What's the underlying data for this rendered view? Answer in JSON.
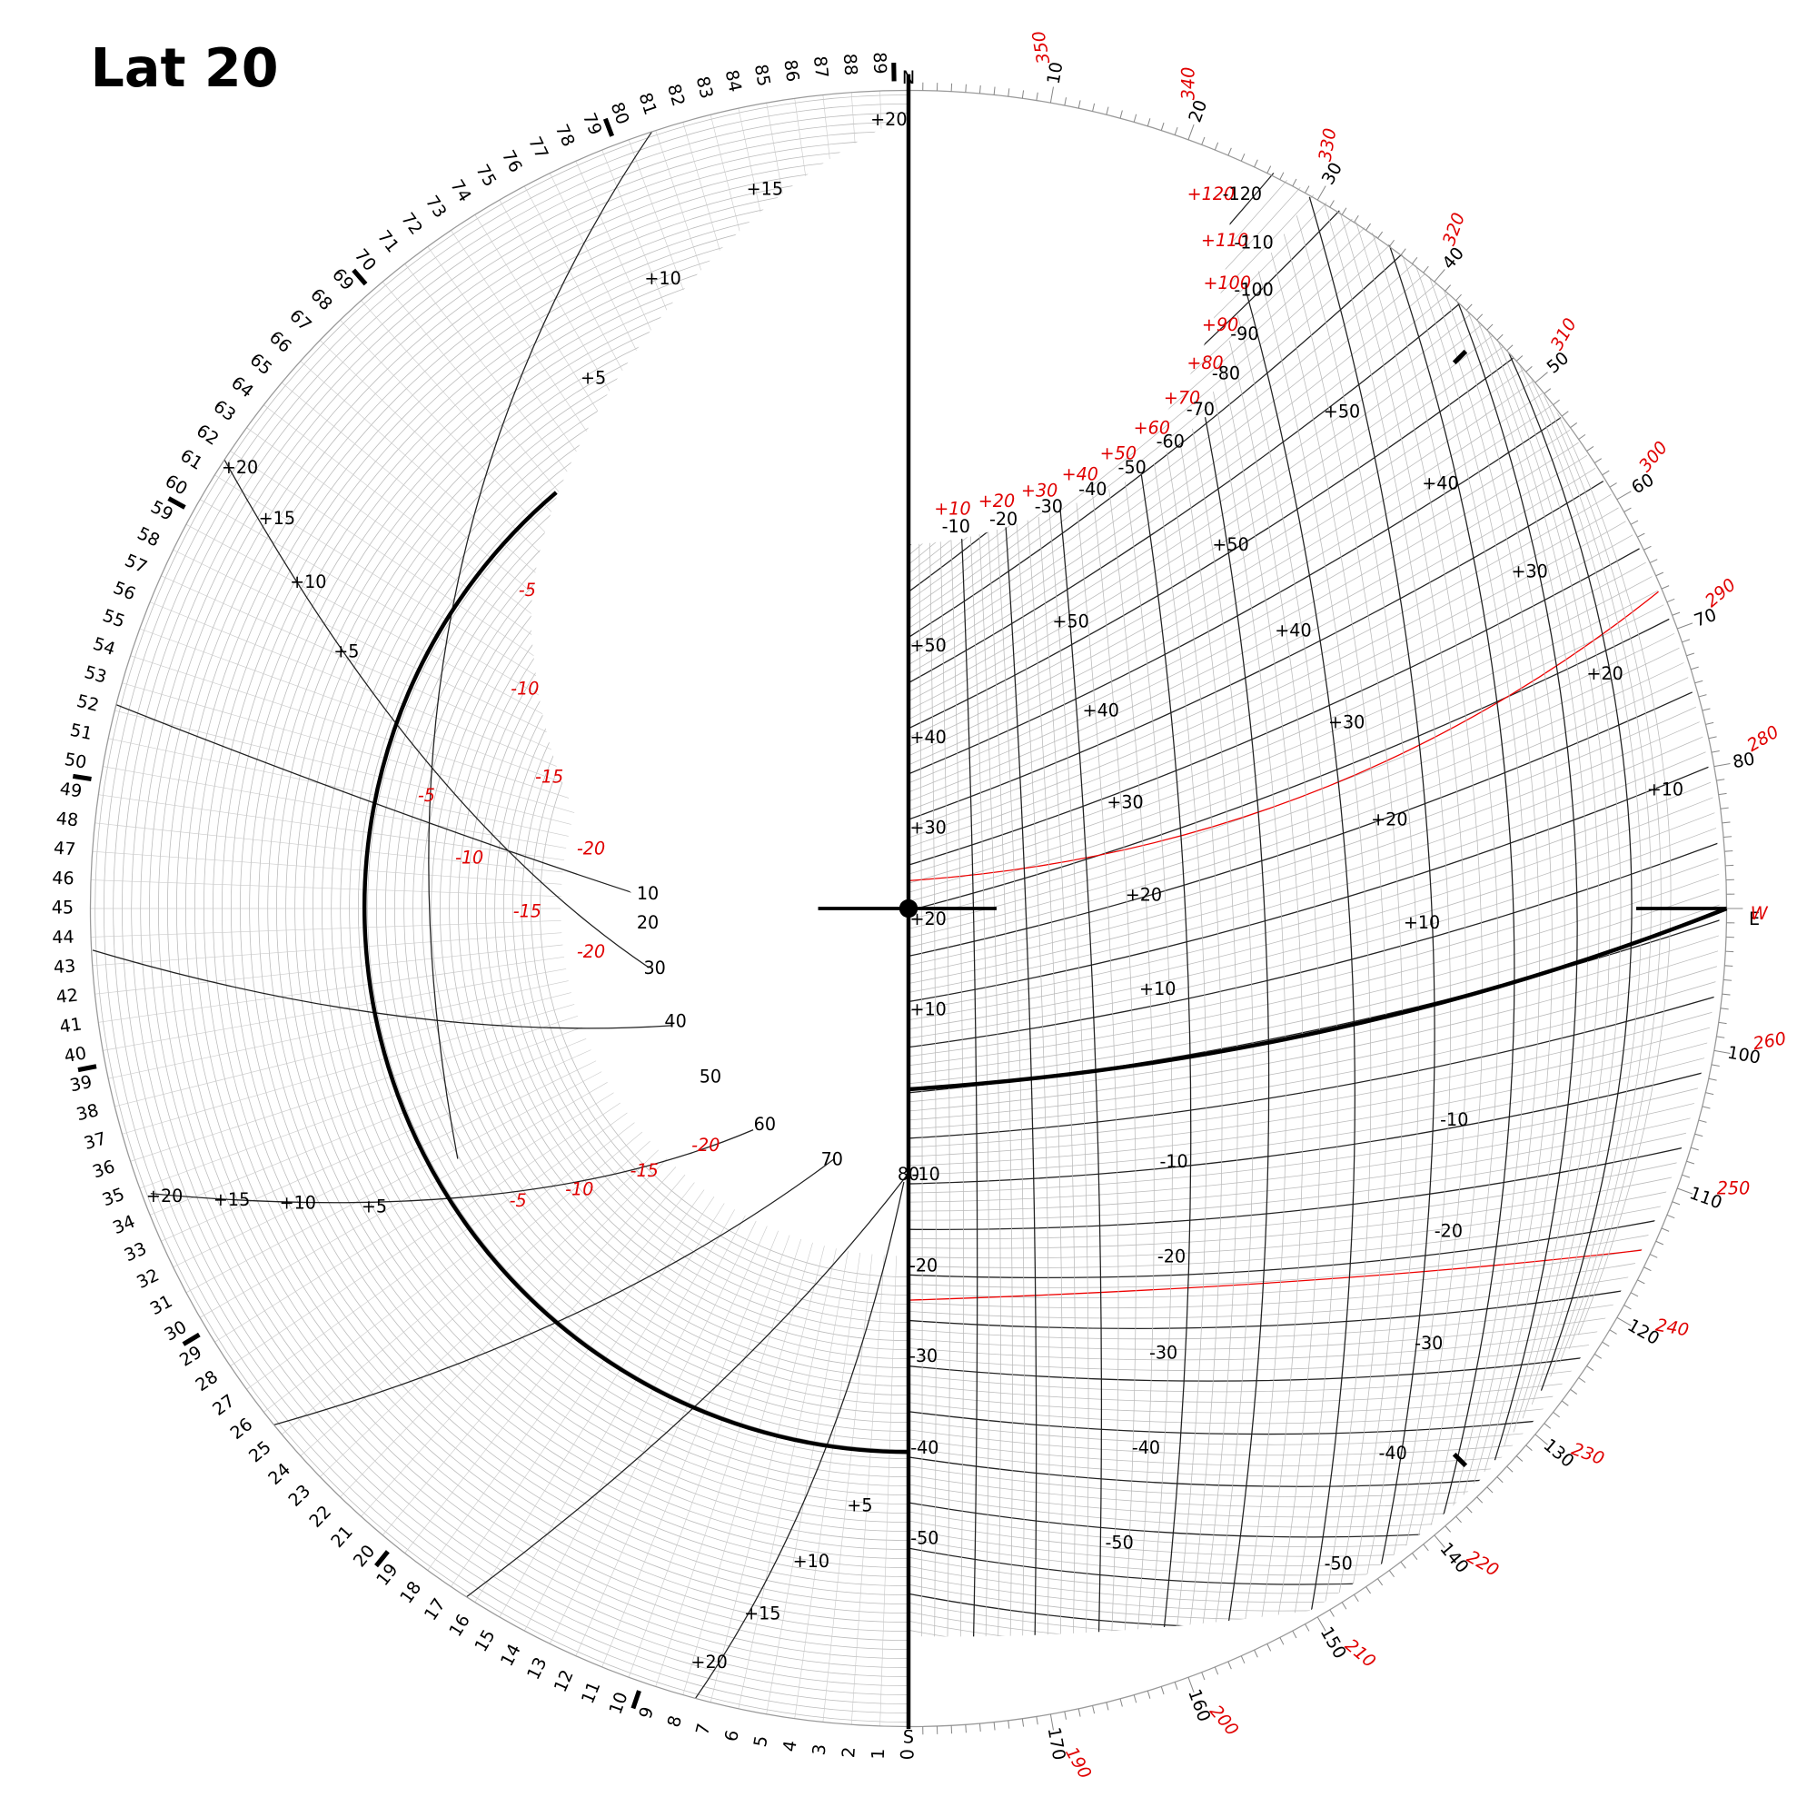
{
  "title": "Lat 20",
  "compass": {
    "north": "N",
    "south": "S",
    "east": "E",
    "west": "W"
  },
  "rim_left": [
    "0",
    "1",
    "2",
    "3",
    "4",
    "5",
    "6",
    "7",
    "8",
    "9",
    "10",
    "11",
    "12",
    "13",
    "14",
    "15",
    "16",
    "17",
    "18",
    "19",
    "20",
    "21",
    "22",
    "23",
    "24",
    "25",
    "26",
    "27",
    "28",
    "29",
    "30",
    "31",
    "32",
    "33",
    "34",
    "35",
    "36",
    "37",
    "38",
    "39",
    "40",
    "41",
    "42",
    "43",
    "44",
    "45",
    "46",
    "47",
    "48",
    "49",
    "50",
    "51",
    "52",
    "53",
    "54",
    "55",
    "56",
    "57",
    "58",
    "59",
    "60",
    "61",
    "62",
    "63",
    "64",
    "65",
    "66",
    "67",
    "68",
    "69",
    "70",
    "71",
    "72",
    "73",
    "74",
    "75",
    "76",
    "77",
    "78",
    "79",
    "80",
    "81",
    "82",
    "83",
    "84",
    "85",
    "86",
    "87",
    "88",
    "89"
  ],
  "rim_right": [
    "10",
    "20",
    "30",
    "40",
    "50",
    "60",
    "70",
    "80",
    "100",
    "110",
    "120",
    "130",
    "140",
    "150",
    "160",
    "170"
  ],
  "rim_right_red": [
    "350",
    "340",
    "330",
    "320",
    "310",
    "300",
    "290",
    "280",
    "260",
    "250",
    "240",
    "230",
    "220",
    "210",
    "200",
    "190"
  ],
  "arc_labels_red": [
    "+10",
    "+20",
    "+30",
    "+40",
    "+50",
    "+60",
    "+70",
    "+80",
    "+90",
    "+100",
    "+110",
    "+120"
  ],
  "arc_labels_black": [
    "-10",
    "-20",
    "-30",
    "-40",
    "-50",
    "-60",
    "-70",
    "-80",
    "-90",
    "-100",
    "-110",
    "-120"
  ],
  "axis_labels": [
    "+50",
    "+40",
    "+30",
    "+20",
    "+10",
    "-10",
    "-20",
    "-30",
    "-40",
    "-50"
  ],
  "grid_labels": [
    "+50",
    "+40",
    "+30",
    "+20",
    "+10",
    "+50",
    "+40",
    "+30",
    "+20",
    "+10",
    "+50",
    "+40",
    "+30",
    "+20",
    "+10",
    "-10",
    "-20",
    "-30",
    "-40",
    "-50",
    "-10",
    "-20",
    "-30",
    "-40",
    "-50"
  ],
  "left_labels": [
    "+20",
    "+15",
    "+10",
    "+5",
    "+20",
    "+15",
    "+10",
    "+5",
    "+20",
    "+15",
    "+10",
    "+5",
    "+5",
    "+10",
    "+15",
    "+20"
  ],
  "left_ring_labels": [
    "10",
    "20",
    "30",
    "40",
    "50",
    "60",
    "70",
    "80"
  ],
  "left_red_labels": [
    "-5",
    "-10",
    "-15",
    "-20",
    "-5",
    "-10",
    "-15",
    "-20",
    "-5",
    "-10",
    "-15",
    "-20"
  ]
}
